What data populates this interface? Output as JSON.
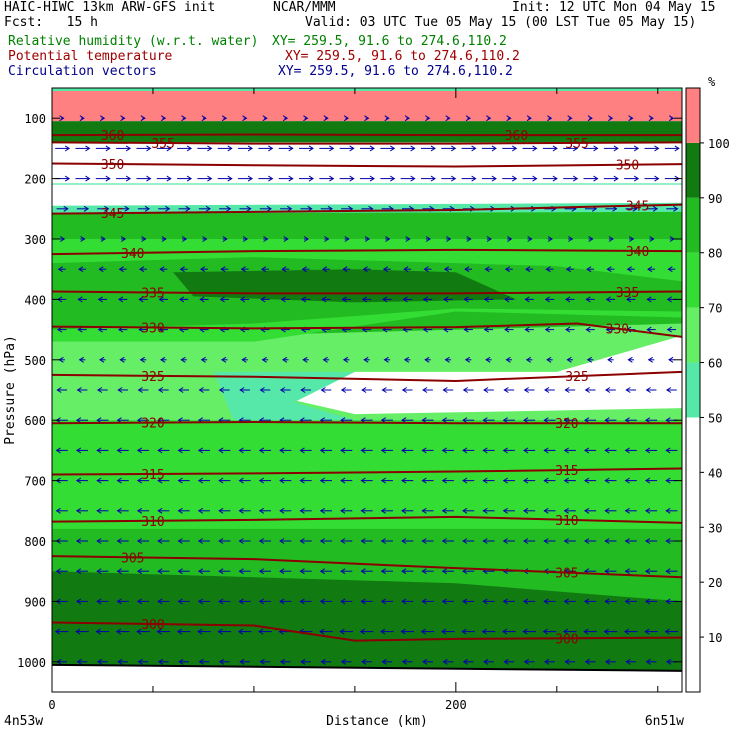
{
  "header": {
    "model": "HAIC-HIWC 13km ARW-GFS init",
    "center": "NCAR/MMM",
    "init": "Init: 12 UTC Mon 04 May 15",
    "fcst": "Fcst:   15 h",
    "valid": "Valid: 03 UTC Tue 05 May 15 (00 LST Tue 05 May 15)",
    "fields": [
      {
        "label": "Relative humidity (w.r.t. water)",
        "xy": "XY= 259.5, 91.6 to 274.6,110.2",
        "color": "#008000"
      },
      {
        "label": "Potential temperature",
        "xy": "XY= 259.5, 91.6 to 274.6,110.2",
        "color": "#a00000"
      },
      {
        "label": "Circulation vectors",
        "xy": "XY= 259.5, 91.6 to 274.6,110.2",
        "color": "#00008b"
      }
    ]
  },
  "chart_data": {
    "type": "cross-section",
    "xlabel": "Distance (km)",
    "ylabel": "Pressure (hPa)",
    "xlim": [
      0,
      312
    ],
    "x_ticks": [
      0,
      200
    ],
    "x_end_labels": [
      "4n53w",
      "6n51w"
    ],
    "ylim": [
      1050,
      50
    ],
    "y_ticks": [
      100,
      200,
      300,
      400,
      500,
      600,
      700,
      800,
      900,
      1000
    ],
    "colorbar": {
      "unit": "%",
      "tick_labels": [
        10,
        20,
        30,
        40,
        50,
        60,
        70,
        80,
        90,
        100
      ],
      "levels": [
        50,
        60,
        70,
        80,
        90,
        100
      ],
      "colors": [
        "#55e8a8",
        "#66ee66",
        "#33dd33",
        "#22bb22",
        "#117a11",
        "#ff8080"
      ]
    },
    "theta_contours": [
      {
        "value": 360,
        "p": [
          [
            0,
            128
          ],
          [
            100,
            127
          ],
          [
            200,
            128
          ],
          [
            312,
            128
          ]
        ],
        "labels": [
          [
            30,
            360
          ],
          [
            230,
            360
          ]
        ]
      },
      {
        "value": 355,
        "p": [
          [
            0,
            140
          ],
          [
            100,
            142
          ],
          [
            200,
            142
          ],
          [
            312,
            140
          ]
        ],
        "labels": [
          [
            55,
            355
          ],
          [
            260,
            355
          ]
        ]
      },
      {
        "value": 350,
        "p": [
          [
            0,
            175
          ],
          [
            100,
            178
          ],
          [
            200,
            180
          ],
          [
            312,
            176
          ]
        ],
        "labels": [
          [
            30,
            350
          ],
          [
            285,
            350
          ]
        ]
      },
      {
        "value": 345,
        "p": [
          [
            0,
            258
          ],
          [
            100,
            255
          ],
          [
            200,
            252
          ],
          [
            312,
            243
          ]
        ],
        "labels": [
          [
            30,
            345
          ],
          [
            290,
            345
          ]
        ]
      },
      {
        "value": 340,
        "p": [
          [
            0,
            325
          ],
          [
            100,
            320
          ],
          [
            200,
            318
          ],
          [
            312,
            320
          ]
        ],
        "labels": [
          [
            40,
            340
          ],
          [
            290,
            340
          ]
        ]
      },
      {
        "value": 335,
        "p": [
          [
            0,
            387
          ],
          [
            100,
            390
          ],
          [
            200,
            390
          ],
          [
            312,
            387
          ]
        ],
        "labels": [
          [
            50,
            335
          ],
          [
            285,
            335
          ]
        ]
      },
      {
        "value": 330,
        "p": [
          [
            0,
            445
          ],
          [
            100,
            448
          ],
          [
            200,
            446
          ],
          [
            260,
            440
          ],
          [
            312,
            462
          ]
        ],
        "labels": [
          [
            50,
            330
          ],
          [
            280,
            330
          ]
        ]
      },
      {
        "value": 325,
        "p": [
          [
            0,
            525
          ],
          [
            100,
            528
          ],
          [
            200,
            535
          ],
          [
            312,
            520
          ]
        ],
        "labels": [
          [
            50,
            325
          ],
          [
            260,
            325
          ]
        ]
      },
      {
        "value": 320,
        "p": [
          [
            0,
            605
          ],
          [
            100,
            603
          ],
          [
            200,
            605
          ],
          [
            312,
            605
          ]
        ],
        "labels": [
          [
            50,
            320
          ],
          [
            255,
            320
          ]
        ]
      },
      {
        "value": 315,
        "p": [
          [
            0,
            690
          ],
          [
            100,
            688
          ],
          [
            200,
            685
          ],
          [
            312,
            680
          ]
        ],
        "labels": [
          [
            50,
            315
          ],
          [
            255,
            315
          ]
        ]
      },
      {
        "value": 310,
        "p": [
          [
            0,
            768
          ],
          [
            100,
            765
          ],
          [
            200,
            760
          ],
          [
            312,
            770
          ]
        ],
        "labels": [
          [
            50,
            310
          ],
          [
            255,
            310
          ]
        ]
      },
      {
        "value": 305,
        "p": [
          [
            0,
            825
          ],
          [
            100,
            830
          ],
          [
            200,
            845
          ],
          [
            312,
            860
          ]
        ],
        "labels": [
          [
            40,
            305
          ],
          [
            255,
            305
          ]
        ]
      },
      {
        "value": 300,
        "p": [
          [
            0,
            935
          ],
          [
            100,
            940
          ],
          [
            150,
            965
          ],
          [
            200,
            962
          ],
          [
            312,
            960
          ]
        ],
        "labels": [
          [
            50,
            300
          ],
          [
            255,
            300
          ]
        ]
      }
    ],
    "rh_regions": [
      {
        "rh": 100,
        "poly": [
          [
            0,
            55
          ],
          [
            312,
            55
          ],
          [
            312,
            105
          ],
          [
            0,
            105
          ]
        ]
      },
      {
        "rh": 90,
        "poly": [
          [
            0,
            105
          ],
          [
            312,
            105
          ],
          [
            312,
            140
          ],
          [
            0,
            140
          ]
        ]
      },
      {
        "rh": 80,
        "poly": [
          [
            0,
            258
          ],
          [
            312,
            255
          ],
          [
            312,
            490
          ],
          [
            0,
            492
          ]
        ]
      },
      {
        "rh": 60,
        "poly": [
          [
            0,
            468
          ],
          [
            312,
            440
          ],
          [
            312,
            630
          ],
          [
            0,
            630
          ]
        ]
      },
      {
        "rh": 70,
        "poly": [
          [
            0,
            300
          ],
          [
            312,
            300
          ],
          [
            312,
            430
          ],
          [
            200,
            420
          ],
          [
            100,
            470
          ],
          [
            0,
            470
          ]
        ]
      },
      {
        "rh": 80,
        "poly": [
          [
            0,
            340
          ],
          [
            100,
            330
          ],
          [
            250,
            345
          ],
          [
            312,
            370
          ],
          [
            312,
            420
          ],
          [
            200,
            415
          ],
          [
            100,
            440
          ],
          [
            0,
            450
          ]
        ]
      },
      {
        "rh": 90,
        "poly": [
          [
            60,
            355
          ],
          [
            150,
            350
          ],
          [
            200,
            355
          ],
          [
            230,
            400
          ],
          [
            150,
            405
          ],
          [
            70,
            395
          ]
        ]
      },
      {
        "rh": 70,
        "poly": [
          [
            0,
            600
          ],
          [
            312,
            600
          ],
          [
            312,
            1050
          ],
          [
            0,
            1050
          ]
        ]
      },
      {
        "rh": 80,
        "poly": [
          [
            0,
            780
          ],
          [
            312,
            780
          ],
          [
            312,
            1050
          ],
          [
            0,
            1050
          ]
        ]
      },
      {
        "rh": 90,
        "poly": [
          [
            0,
            850
          ],
          [
            200,
            870
          ],
          [
            312,
            900
          ],
          [
            312,
            1050
          ],
          [
            0,
            1050
          ]
        ]
      },
      {
        "rh": 0,
        "poly": [
          [
            0,
            210
          ],
          [
            312,
            210
          ],
          [
            312,
            240
          ],
          [
            0,
            245
          ]
        ]
      },
      {
        "rh": 0,
        "poly": [
          [
            0,
            140
          ],
          [
            312,
            140
          ],
          [
            312,
            208
          ],
          [
            0,
            208
          ]
        ]
      },
      {
        "rh": 0,
        "poly": [
          [
            85,
            540
          ],
          [
            150,
            520
          ],
          [
            250,
            520
          ],
          [
            312,
            460
          ],
          [
            312,
            580
          ],
          [
            150,
            590
          ]
        ]
      },
      {
        "rh": 50,
        "poly": [
          [
            80,
            520
          ],
          [
            150,
            520
          ],
          [
            120,
            570
          ],
          [
            150,
            600
          ],
          [
            90,
            600
          ]
        ]
      },
      {
        "rh": 0,
        "poly": [
          [
            0,
            1005
          ],
          [
            312,
            1015
          ],
          [
            312,
            1050
          ],
          [
            0,
            1050
          ]
        ]
      }
    ],
    "wind_rows": [
      {
        "p": 100,
        "u": 0.2
      },
      {
        "p": 150,
        "u": 1.0
      },
      {
        "p": 200,
        "u": 1.0
      },
      {
        "p": 250,
        "u": 0.8
      },
      {
        "p": 300,
        "u": 0.3
      },
      {
        "p": 350,
        "u": -0.5
      },
      {
        "p": 400,
        "u": -0.6
      },
      {
        "p": 450,
        "u": -0.6
      },
      {
        "p": 500,
        "u": -0.4
      },
      {
        "p": 550,
        "u": -0.7
      },
      {
        "p": 600,
        "u": -0.8
      },
      {
        "p": 650,
        "u": -0.8
      },
      {
        "p": 700,
        "u": -0.8
      },
      {
        "p": 750,
        "u": -0.8
      },
      {
        "p": 800,
        "u": -0.8
      },
      {
        "p": 850,
        "u": -0.8
      },
      {
        "p": 900,
        "u": -0.8
      },
      {
        "p": 950,
        "u": -0.9
      },
      {
        "p": 1000,
        "u": -0.7
      }
    ]
  }
}
